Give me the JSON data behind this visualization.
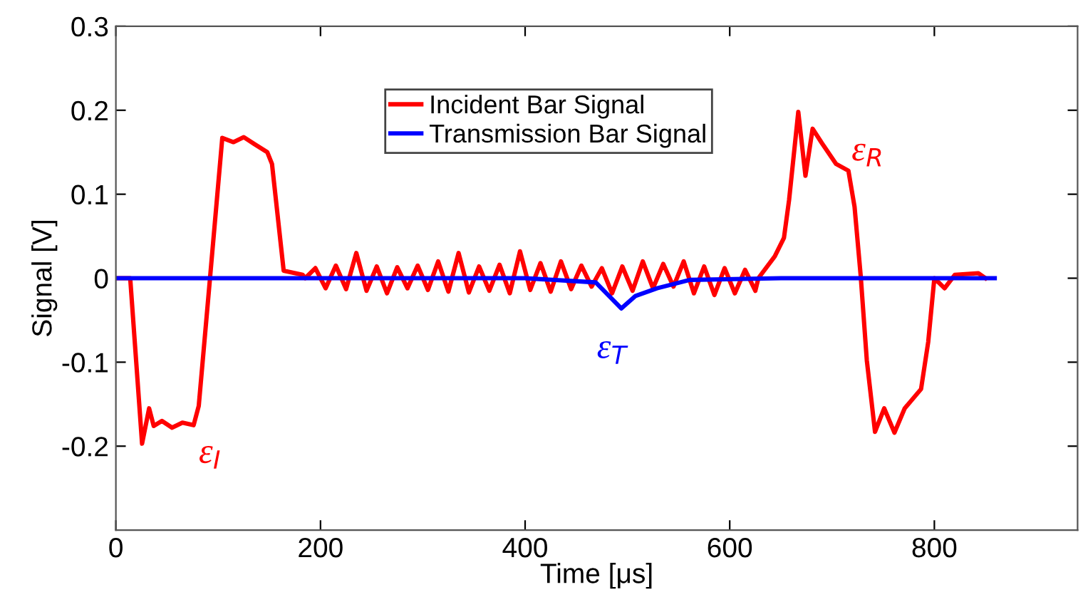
{
  "chart_data": {
    "type": "line",
    "xlabel": "Time [μs]",
    "ylabel": "Signal [V]",
    "xlim": [
      0,
      940
    ],
    "xticks": [
      0,
      200,
      400,
      600,
      800
    ],
    "ylim": [
      -0.3,
      0.3
    ],
    "yticks": [
      -0.2,
      -0.1,
      0,
      0.1,
      0.2,
      0.3
    ],
    "grid": false,
    "legend": "top",
    "marker": "none",
    "line_style": "solid",
    "series": [
      {
        "name": "Incident Bar Signal",
        "color": "#ff0000",
        "x": [
          2,
          14,
          25.6,
          32.5,
          37,
          45,
          55,
          65,
          76,
          81,
          92,
          104,
          115,
          125,
          135,
          148,
          152.6,
          164,
          182.6,
          185,
          195,
          205,
          215,
          225,
          235,
          245,
          255,
          265,
          275,
          285,
          295,
          305,
          315,
          325,
          335,
          345,
          355,
          365,
          375,
          385,
          395,
          405,
          415,
          425,
          435,
          445,
          455,
          465,
          475,
          485,
          495,
          505,
          515,
          525,
          535,
          545,
          555,
          565,
          575,
          585,
          595,
          605,
          615,
          625,
          628,
          644,
          653,
          658,
          667,
          674,
          681,
          690,
          704,
          716,
          722,
          728,
          734,
          742,
          751,
          761,
          771,
          787,
          794,
          800,
          810,
          820,
          843,
          850
        ],
        "values": [
          0,
          0,
          -0.197,
          -0.155,
          -0.176,
          -0.17,
          -0.178,
          -0.172,
          -0.175,
          -0.152,
          0,
          0.167,
          0.162,
          0.168,
          0.16,
          0.15,
          0.136,
          0.009,
          0.004,
          0,
          0.012,
          -0.012,
          0.015,
          -0.013,
          0.03,
          -0.015,
          0.014,
          -0.018,
          0.013,
          -0.012,
          0.015,
          -0.014,
          0.02,
          -0.016,
          0.03,
          -0.017,
          0.014,
          -0.015,
          0.016,
          -0.018,
          0.032,
          -0.014,
          0.018,
          -0.016,
          0.02,
          -0.013,
          0.015,
          -0.01,
          0.012,
          -0.018,
          0.014,
          -0.015,
          0.02,
          -0.012,
          0.017,
          -0.01,
          0.02,
          -0.018,
          0.014,
          -0.02,
          0.012,
          -0.018,
          0.01,
          -0.015,
          0,
          0.026,
          0.048,
          0.093,
          0.198,
          0.122,
          0.178,
          0.161,
          0.136,
          0.128,
          0.085,
          0.003,
          -0.098,
          -0.183,
          -0.155,
          -0.184,
          -0.155,
          -0.132,
          -0.076,
          0,
          -0.012,
          0.004,
          0.006,
          0
        ]
      },
      {
        "name": "Transmission Bar Signal",
        "color": "#0000ff",
        "x": [
          0,
          100,
          200,
          300,
          400,
          469,
          494,
          508,
          529,
          561,
          650,
          750,
          859
        ],
        "values": [
          0,
          0,
          0,
          0,
          0,
          -0.005,
          -0.036,
          -0.021,
          -0.012,
          -0.002,
          0,
          0,
          0
        ]
      }
    ],
    "annotations": [
      "ε$_{I}$",
      "ε$_{R}$",
      "ε$_{T}$"
    ]
  }
}
